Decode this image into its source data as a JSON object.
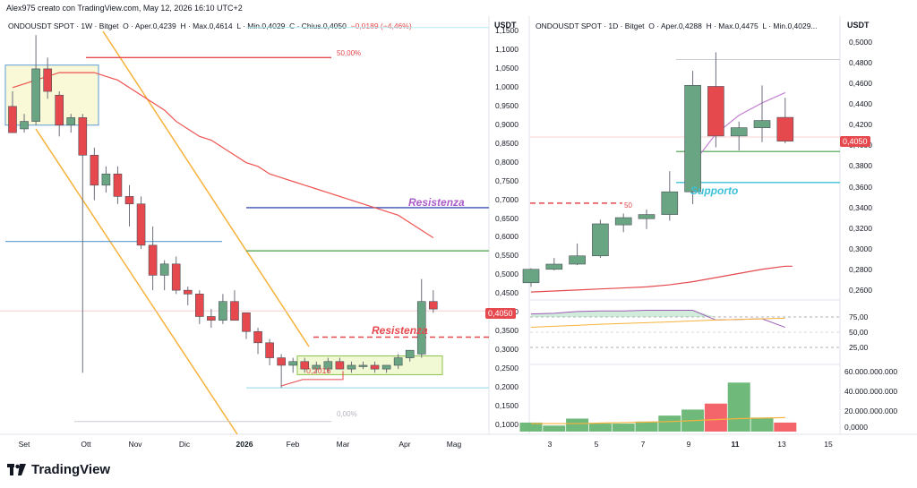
{
  "header": {
    "credit": "Alex975 creato con TradingView.com, May 12, 2026 16:10 UTC+2"
  },
  "left_chart": {
    "legend_prefix": "ONDOUSDT SPOT · 1W · Bitget",
    "legend_o": "O · Aper.0,4239",
    "legend_h": "H · Max.0,4614",
    "legend_l": "L · Min.0,4029",
    "legend_c": "C · Chius.0,4050",
    "legend_chg": "−0,0189 (−4,46%)",
    "unit": "USDT",
    "last_price_label": "0,4050",
    "y_ticks": [
      "1,1500",
      "1,1000",
      "1,0500",
      "1,0000",
      "0,9500",
      "0,9000",
      "0,8500",
      "0,8000",
      "0,7500",
      "0,7000",
      "0,6500",
      "0,6000",
      "0,5500",
      "0,5000",
      "0,4500",
      "0,4000",
      "0,3500",
      "0,3000",
      "0,2500",
      "0,2000",
      "0,1500",
      "0,1000"
    ],
    "x_ticks": [
      {
        "label": "Set",
        "bold": false
      },
      {
        "label": "Ott",
        "bold": false
      },
      {
        "label": "Nov",
        "bold": false
      },
      {
        "label": "Dic",
        "bold": false
      },
      {
        "label": "2026",
        "bold": true
      },
      {
        "label": "Feb",
        "bold": false
      },
      {
        "label": "Mar",
        "bold": false
      },
      {
        "label": "Apr",
        "bold": false
      },
      {
        "label": "Mag",
        "bold": false
      }
    ],
    "annotations": {
      "fib50": "50,00%",
      "fib0": "0,00%",
      "resist1": "Resistenza",
      "resist2": "Resistenza",
      "low_label": "0,2016"
    },
    "colors": {
      "up": "#6aa583",
      "down": "#e5484d",
      "ma": "#ef5350",
      "channel": "#f7b23b",
      "resist": "#ab5cc8",
      "resist2": "#e5484d",
      "support": "#3cc0d8"
    }
  },
  "right_chart": {
    "legend_prefix": "ONDOUSDT SPOT · 1D · Bitget",
    "legend_o": "O · Aper.0,4288",
    "legend_h": "H · Max.0,4475",
    "legend_l": "L · Min.0,4029...",
    "unit": "USDT",
    "last_price_label": "0,4050",
    "y_ticks": [
      "0,5000",
      "0,4800",
      "0,4600",
      "0,4400",
      "0,4200",
      "0,4000",
      "0,3800",
      "0,3600",
      "0,3400",
      "0,3200",
      "0,3000",
      "0,2800",
      "0,2600"
    ],
    "rsi_ticks": [
      "75,00",
      "50,00",
      "25,00"
    ],
    "vol_ticks": [
      "60.000.000.000",
      "40.000.000.000",
      "20.000.000.000",
      "0,0000"
    ],
    "x_ticks": [
      {
        "label": "3",
        "bold": false
      },
      {
        "label": "5",
        "bold": false
      },
      {
        "label": "7",
        "bold": false
      },
      {
        "label": "9",
        "bold": false
      },
      {
        "label": "11",
        "bold": true
      },
      {
        "label": "13",
        "bold": false
      },
      {
        "label": "15",
        "bold": false
      }
    ],
    "annotations": {
      "support": "Supporto",
      "fib50": "50"
    }
  },
  "footer": {
    "brand": "TradingView"
  },
  "chart_data": [
    {
      "type": "candlestick",
      "timeframe": "1W",
      "ylim": [
        0.08,
        1.18
      ],
      "candles": [
        {
          "o": 0.95,
          "h": 0.99,
          "l": 0.89,
          "c": 0.88
        },
        {
          "o": 0.89,
          "h": 0.93,
          "l": 0.88,
          "c": 0.91
        },
        {
          "o": 0.91,
          "h": 1.14,
          "l": 0.9,
          "c": 1.05
        },
        {
          "o": 1.05,
          "h": 1.08,
          "l": 0.97,
          "c": 0.99
        },
        {
          "o": 0.98,
          "h": 0.99,
          "l": 0.87,
          "c": 0.9
        },
        {
          "o": 0.9,
          "h": 0.93,
          "l": 0.88,
          "c": 0.92
        },
        {
          "o": 0.92,
          "h": 0.93,
          "l": 0.24,
          "c": 0.82
        },
        {
          "o": 0.82,
          "h": 0.84,
          "l": 0.7,
          "c": 0.74
        },
        {
          "o": 0.74,
          "h": 0.79,
          "l": 0.72,
          "c": 0.77
        },
        {
          "o": 0.77,
          "h": 0.79,
          "l": 0.69,
          "c": 0.71
        },
        {
          "o": 0.71,
          "h": 0.74,
          "l": 0.63,
          "c": 0.69
        },
        {
          "o": 0.69,
          "h": 0.71,
          "l": 0.57,
          "c": 0.58
        },
        {
          "o": 0.58,
          "h": 0.63,
          "l": 0.46,
          "c": 0.5
        },
        {
          "o": 0.5,
          "h": 0.54,
          "l": 0.46,
          "c": 0.53
        },
        {
          "o": 0.53,
          "h": 0.55,
          "l": 0.45,
          "c": 0.46
        },
        {
          "o": 0.46,
          "h": 0.47,
          "l": 0.42,
          "c": 0.45
        },
        {
          "o": 0.45,
          "h": 0.46,
          "l": 0.37,
          "c": 0.39
        },
        {
          "o": 0.39,
          "h": 0.41,
          "l": 0.36,
          "c": 0.38
        },
        {
          "o": 0.38,
          "h": 0.45,
          "l": 0.37,
          "c": 0.43
        },
        {
          "o": 0.43,
          "h": 0.46,
          "l": 0.38,
          "c": 0.38
        },
        {
          "o": 0.4,
          "h": 0.4,
          "l": 0.33,
          "c": 0.35
        },
        {
          "o": 0.35,
          "h": 0.36,
          "l": 0.29,
          "c": 0.32
        },
        {
          "o": 0.32,
          "h": 0.33,
          "l": 0.26,
          "c": 0.28
        },
        {
          "o": 0.28,
          "h": 0.29,
          "l": 0.2,
          "c": 0.26
        },
        {
          "o": 0.26,
          "h": 0.28,
          "l": 0.24,
          "c": 0.27
        },
        {
          "o": 0.27,
          "h": 0.28,
          "l": 0.24,
          "c": 0.25
        },
        {
          "o": 0.25,
          "h": 0.27,
          "l": 0.24,
          "c": 0.26
        },
        {
          "o": 0.25,
          "h": 0.28,
          "l": 0.24,
          "c": 0.27
        },
        {
          "o": 0.27,
          "h": 0.28,
          "l": 0.25,
          "c": 0.25
        },
        {
          "o": 0.25,
          "h": 0.27,
          "l": 0.24,
          "c": 0.26
        },
        {
          "o": 0.26,
          "h": 0.27,
          "l": 0.25,
          "c": 0.26
        },
        {
          "o": 0.26,
          "h": 0.27,
          "l": 0.24,
          "c": 0.25
        },
        {
          "o": 0.25,
          "h": 0.26,
          "l": 0.24,
          "c": 0.26
        },
        {
          "o": 0.26,
          "h": 0.29,
          "l": 0.25,
          "c": 0.28
        },
        {
          "o": 0.28,
          "h": 0.3,
          "l": 0.27,
          "c": 0.3
        },
        {
          "o": 0.29,
          "h": 0.49,
          "l": 0.28,
          "c": 0.43
        },
        {
          "o": 0.43,
          "h": 0.46,
          "l": 0.4,
          "c": 0.41
        }
      ],
      "moving_average": [
        1.0,
        1.01,
        1.02,
        1.03,
        1.04,
        1.04,
        1.04,
        1.04,
        1.03,
        1.02,
        1.0,
        0.98,
        0.96,
        0.94,
        0.91,
        0.89,
        0.87,
        0.86,
        0.84,
        0.82,
        0.8,
        0.79,
        0.77,
        0.76,
        0.75,
        0.74,
        0.73,
        0.72,
        0.71,
        0.7,
        0.69,
        0.68,
        0.67,
        0.66,
        0.64,
        0.62,
        0.6
      ],
      "levels": {
        "fib50": 1.08,
        "fib0": 0.11,
        "resist_purple": 0.68,
        "resist_green": 0.565,
        "resist_red_dashed": 0.335,
        "support_cyan": 0.2,
        "blue_line": 0.59,
        "cyan_top": 1.16
      }
    },
    {
      "type": "candlestick",
      "timeframe": "1D",
      "ylim": [
        0.248,
        0.515
      ],
      "candles": [
        {
          "o": 0.268,
          "h": 0.282,
          "l": 0.264,
          "c": 0.281
        },
        {
          "o": 0.281,
          "h": 0.292,
          "l": 0.28,
          "c": 0.286
        },
        {
          "o": 0.286,
          "h": 0.306,
          "l": 0.285,
          "c": 0.294
        },
        {
          "o": 0.294,
          "h": 0.329,
          "l": 0.292,
          "c": 0.325
        },
        {
          "o": 0.324,
          "h": 0.335,
          "l": 0.317,
          "c": 0.331
        },
        {
          "o": 0.33,
          "h": 0.339,
          "l": 0.32,
          "c": 0.334
        },
        {
          "o": 0.334,
          "h": 0.376,
          "l": 0.328,
          "c": 0.356
        },
        {
          "o": 0.356,
          "h": 0.473,
          "l": 0.344,
          "c": 0.459
        },
        {
          "o": 0.458,
          "h": 0.491,
          "l": 0.399,
          "c": 0.41
        },
        {
          "o": 0.41,
          "h": 0.424,
          "l": 0.396,
          "c": 0.418
        },
        {
          "o": 0.418,
          "h": 0.459,
          "l": 0.404,
          "c": 0.425
        },
        {
          "o": 0.428,
          "h": 0.447,
          "l": 0.403,
          "c": 0.405
        }
      ],
      "ma_line": [
        null,
        null,
        null,
        null,
        null,
        null,
        null,
        0.383,
        0.412,
        0.43,
        0.442,
        0.452
      ],
      "long_ma": [
        0.259,
        0.26,
        0.261,
        0.262,
        0.263,
        0.264,
        0.266,
        0.269,
        0.273,
        0.277,
        0.281,
        0.284
      ],
      "levels": {
        "gray_top": 0.484,
        "pink_dashed": 0.345,
        "green_line": 0.395,
        "support_cyan": 0.365,
        "light_pink": 0.409
      },
      "volume": [
        9,
        6,
        13,
        8,
        8,
        10,
        16,
        22,
        28,
        49,
        14,
        9
      ],
      "volume_ma": [
        8,
        8,
        8,
        8.5,
        9,
        9.5,
        10,
        11,
        12,
        13,
        13.5,
        14
      ]
    }
  ]
}
